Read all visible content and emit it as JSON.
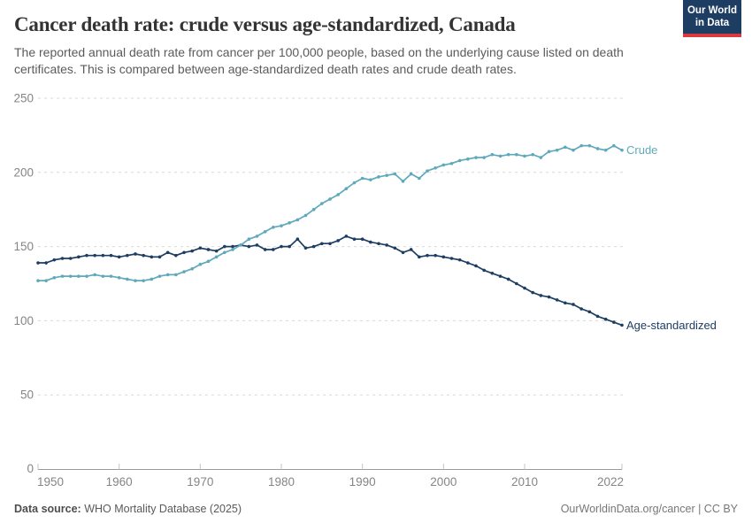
{
  "header": {
    "title": "Cancer death rate: crude versus age-standardized, Canada",
    "subtitle": "The reported annual death rate from cancer per 100,000 people, based on the underlying cause listed on death certificates. This is compared between age-standardized death rates and crude death rates.",
    "logo": {
      "line1": "Our World",
      "line2": "in Data",
      "bg_color": "#1d3d63",
      "accent_color": "#d93a3f"
    }
  },
  "chart_data": {
    "type": "line",
    "title": "Cancer death rate: crude versus age-standardized, Canada",
    "xlabel": "",
    "ylabel": "",
    "x_start": 1950,
    "x_end": 2022,
    "ylim": [
      0,
      250
    ],
    "yticks": [
      0,
      50,
      100,
      150,
      200,
      250
    ],
    "xticks": [
      1950,
      1960,
      1970,
      1980,
      1990,
      2000,
      2010,
      2022
    ],
    "grid": "horizontal-dashed",
    "legend_position": "line-end-labels",
    "colors": {
      "grid": "#d9d9d9",
      "axis": "#9a9a9a",
      "tick": "#c4c4c4",
      "tick_text": "#858585"
    },
    "series": [
      {
        "name": "Age-standardized",
        "color": "#1d3d63",
        "values": [
          139,
          139,
          141,
          142,
          142,
          143,
          144,
          144,
          144,
          144,
          143,
          144,
          145,
          144,
          143,
          143,
          146,
          144,
          146,
          147,
          149,
          148,
          147,
          150,
          150,
          151,
          150,
          151,
          148,
          148,
          150,
          150,
          155,
          149,
          150,
          152,
          152,
          154,
          157,
          155,
          155,
          153,
          152,
          151,
          149,
          146,
          148,
          143,
          144,
          144,
          143,
          142,
          141,
          139,
          137,
          134,
          132,
          130,
          128,
          125,
          122,
          119,
          117,
          116,
          114,
          112,
          111,
          108,
          106,
          103,
          101,
          99,
          97
        ]
      },
      {
        "name": "Crude",
        "color": "#5ea9bb",
        "values": [
          127,
          127,
          129,
          130,
          130,
          130,
          130,
          131,
          130,
          130,
          129,
          128,
          127,
          127,
          128,
          130,
          131,
          131,
          133,
          135,
          138,
          140,
          143,
          146,
          148,
          151,
          155,
          157,
          160,
          163,
          164,
          166,
          168,
          171,
          175,
          179,
          182,
          185,
          189,
          193,
          196,
          195,
          197,
          198,
          199,
          194,
          199,
          196,
          201,
          203,
          205,
          206,
          208,
          209,
          210,
          210,
          212,
          211,
          212,
          212,
          211,
          212,
          210,
          214,
          215,
          217,
          215,
          218,
          218,
          216,
          215,
          218,
          215
        ]
      }
    ]
  },
  "footer": {
    "datasource_label": "Data source:",
    "datasource_value": " WHO Mortality Database (2025)",
    "rights": "OurWorldinData.org/cancer | CC BY"
  }
}
